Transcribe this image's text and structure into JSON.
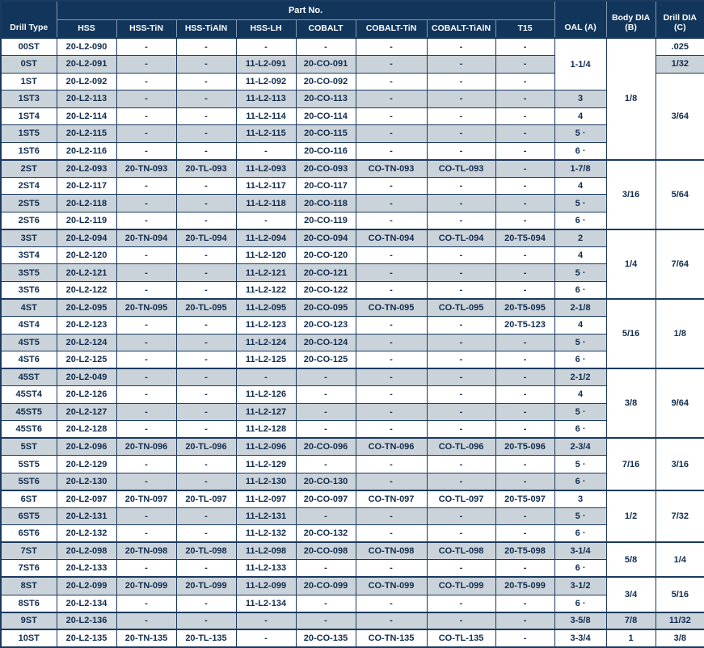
{
  "colors": {
    "header_bg": "#12365b",
    "header_text": "#ffffff",
    "header_sep": "#8296aa",
    "border": "#1b3a5f",
    "stripe": "#cbd3da",
    "text": "#112c4e"
  },
  "header": {
    "drill_type_label": "Drill Type",
    "part_no_label": "Part No.",
    "part_columns": [
      "HSS",
      "HSS-TiN",
      "HSS-TiAlN",
      "HSS-LH",
      "COBALT",
      "COBALT-TiN",
      "COBALT-TiAlN",
      "T15"
    ],
    "oal_label": "OAL (A)",
    "body_dia_label": "Body DIA\n(B)",
    "drill_dia_label": "Drill DIA\n(C)"
  },
  "rows": [
    {
      "type": "00ST",
      "parts": [
        "20-L2-090",
        "-",
        "-",
        "-",
        "-",
        "-",
        "-",
        "-"
      ],
      "oal": "1-1/4",
      "oal_span": 3,
      "body": "1/8",
      "body_span": 7,
      "drill": ".025",
      "drill_span": 1
    },
    {
      "type": "0ST",
      "parts": [
        "20-L2-091",
        "-",
        "-",
        "11-L2-091",
        "20-CO-091",
        "-",
        "-",
        "-"
      ],
      "drill": "1/32",
      "drill_span": 1
    },
    {
      "type": "1ST",
      "parts": [
        "20-L2-092",
        "-",
        "-",
        "11-L2-092",
        "20-CO-092",
        "-",
        "-",
        "-"
      ],
      "drill": "3/64",
      "drill_span": 5
    },
    {
      "type": "1ST3",
      "parts": [
        "20-L2-113",
        "-",
        "-",
        "11-L2-113",
        "20-CO-113",
        "-",
        "-",
        "-"
      ],
      "oal": "3",
      "oal_span": 1
    },
    {
      "type": "1ST4",
      "parts": [
        "20-L2-114",
        "-",
        "-",
        "11-L2-114",
        "20-CO-114",
        "-",
        "-",
        "-"
      ],
      "oal": "4",
      "oal_span": 1
    },
    {
      "type": "1ST5",
      "parts": [
        "20-L2-115",
        "-",
        "-",
        "11-L2-115",
        "20-CO-115",
        "-",
        "-",
        "-"
      ],
      "oal": "5 ·",
      "oal_span": 1
    },
    {
      "type": "1ST6",
      "parts": [
        "20-L2-116",
        "-",
        "-",
        "-",
        "20-CO-116",
        "-",
        "-",
        "-"
      ],
      "oal": "6 ·",
      "oal_span": 1
    },
    {
      "type": "2ST",
      "group": true,
      "parts": [
        "20-L2-093",
        "20-TN-093",
        "20-TL-093",
        "11-L2-093",
        "20-CO-093",
        "CO-TN-093",
        "CO-TL-093",
        "-"
      ],
      "oal": "1-7/8",
      "oal_span": 1,
      "body": "3/16",
      "body_span": 4,
      "drill": "5/64",
      "drill_span": 4
    },
    {
      "type": "2ST4",
      "parts": [
        "20-L2-117",
        "-",
        "-",
        "11-L2-117",
        "20-CO-117",
        "-",
        "-",
        "-"
      ],
      "oal": "4",
      "oal_span": 1
    },
    {
      "type": "2ST5",
      "parts": [
        "20-L2-118",
        "-",
        "-",
        "11-L2-118",
        "20-CO-118",
        "-",
        "-",
        "-"
      ],
      "oal": "5 ·",
      "oal_span": 1
    },
    {
      "type": "2ST6",
      "parts": [
        "20-L2-119",
        "-",
        "-",
        "-",
        "20-CO-119",
        "-",
        "-",
        "-"
      ],
      "oal": "6 ·",
      "oal_span": 1
    },
    {
      "type": "3ST",
      "group": true,
      "parts": [
        "20-L2-094",
        "20-TN-094",
        "20-TL-094",
        "11-L2-094",
        "20-CO-094",
        "CO-TN-094",
        "CO-TL-094",
        "20-T5-094"
      ],
      "oal": "2",
      "oal_span": 1,
      "body": "1/4",
      "body_span": 4,
      "drill": "7/64",
      "drill_span": 4
    },
    {
      "type": "3ST4",
      "parts": [
        "20-L2-120",
        "-",
        "-",
        "11-L2-120",
        "20-CO-120",
        "-",
        "-",
        "-"
      ],
      "oal": "4",
      "oal_span": 1
    },
    {
      "type": "3ST5",
      "parts": [
        "20-L2-121",
        "-",
        "-",
        "11-L2-121",
        "20-CO-121",
        "-",
        "-",
        "-"
      ],
      "oal": "5 ·",
      "oal_span": 1
    },
    {
      "type": "3ST6",
      "parts": [
        "20-L2-122",
        "-",
        "-",
        "11-L2-122",
        "20-CO-122",
        "-",
        "-",
        "-"
      ],
      "oal": "6 ·",
      "oal_span": 1
    },
    {
      "type": "4ST",
      "group": true,
      "parts": [
        "20-L2-095",
        "20-TN-095",
        "20-TL-095",
        "11-L2-095",
        "20-CO-095",
        "CO-TN-095",
        "CO-TL-095",
        "20-T5-095"
      ],
      "oal": "2-1/8",
      "oal_span": 1,
      "body": "5/16",
      "body_span": 4,
      "drill": "1/8",
      "drill_span": 4
    },
    {
      "type": "4ST4",
      "parts": [
        "20-L2-123",
        "-",
        "-",
        "11-L2-123",
        "20-CO-123",
        "-",
        "-",
        "20-T5-123"
      ],
      "oal": "4",
      "oal_span": 1
    },
    {
      "type": "4ST5",
      "parts": [
        "20-L2-124",
        "-",
        "-",
        "11-L2-124",
        "20-CO-124",
        "-",
        "-",
        "-"
      ],
      "oal": "5 ·",
      "oal_span": 1
    },
    {
      "type": "4ST6",
      "parts": [
        "20-L2-125",
        "-",
        "-",
        "11-L2-125",
        "20-CO-125",
        "-",
        "-",
        "-"
      ],
      "oal": "6 ·",
      "oal_span": 1
    },
    {
      "type": "45ST",
      "group": true,
      "parts": [
        "20-L2-049",
        "-",
        "-",
        "-",
        "-",
        "-",
        "-",
        "-"
      ],
      "oal": "2-1/2",
      "oal_span": 1,
      "body": "3/8",
      "body_span": 4,
      "drill": "9/64",
      "drill_span": 4
    },
    {
      "type": "45ST4",
      "parts": [
        "20-L2-126",
        "-",
        "-",
        "11-L2-126",
        "-",
        "-",
        "-",
        "-"
      ],
      "oal": "4",
      "oal_span": 1
    },
    {
      "type": "45ST5",
      "parts": [
        "20-L2-127",
        "-",
        "-",
        "11-L2-127",
        "-",
        "-",
        "-",
        "-"
      ],
      "oal": "5 ·",
      "oal_span": 1
    },
    {
      "type": "45ST6",
      "parts": [
        "20-L2-128",
        "-",
        "-",
        "11-L2-128",
        "-",
        "-",
        "-",
        "-"
      ],
      "oal": "6 ·",
      "oal_span": 1
    },
    {
      "type": "5ST",
      "group": true,
      "parts": [
        "20-L2-096",
        "20-TN-096",
        "20-TL-096",
        "11-L2-096",
        "20-CO-096",
        "CO-TN-096",
        "CO-TL-096",
        "20-T5-096"
      ],
      "oal": "2-3/4",
      "oal_span": 1,
      "body": "7/16",
      "body_span": 3,
      "drill": "3/16",
      "drill_span": 3
    },
    {
      "type": "5ST5",
      "parts": [
        "20-L2-129",
        "-",
        "-",
        "11-L2-129",
        "-",
        "-",
        "-",
        "-"
      ],
      "oal": "5 ·",
      "oal_span": 1
    },
    {
      "type": "5ST6",
      "parts": [
        "20-L2-130",
        "-",
        "-",
        "11-L2-130",
        "20-CO-130",
        "-",
        "-",
        "-"
      ],
      "oal": "6 ·",
      "oal_span": 1
    },
    {
      "type": "6ST",
      "group": true,
      "parts": [
        "20-L2-097",
        "20-TN-097",
        "20-TL-097",
        "11-L2-097",
        "20-CO-097",
        "CO-TN-097",
        "CO-TL-097",
        "20-T5-097"
      ],
      "oal": "3",
      "oal_span": 1,
      "body": "1/2",
      "body_span": 3,
      "drill": "7/32",
      "drill_span": 3
    },
    {
      "type": "6ST5",
      "parts": [
        "20-L2-131",
        "-",
        "-",
        "11-L2-131",
        "-",
        "-",
        "-",
        "-"
      ],
      "oal": "5 ·",
      "oal_span": 1
    },
    {
      "type": "6ST6",
      "parts": [
        "20-L2-132",
        "-",
        "-",
        "11-L2-132",
        "20-CO-132",
        "-",
        "-",
        "-"
      ],
      "oal": "6 ·",
      "oal_span": 1
    },
    {
      "type": "7ST",
      "group": true,
      "parts": [
        "20-L2-098",
        "20-TN-098",
        "20-TL-098",
        "11-L2-098",
        "20-CO-098",
        "CO-TN-098",
        "CO-TL-098",
        "20-T5-098"
      ],
      "oal": "3-1/4",
      "oal_span": 1,
      "body": "5/8",
      "body_span": 2,
      "drill": "1/4",
      "drill_span": 2
    },
    {
      "type": "7ST6",
      "parts": [
        "20-L2-133",
        "-",
        "-",
        "11-L2-133",
        "-",
        "-",
        "-",
        "-"
      ],
      "oal": "6 ·",
      "oal_span": 1
    },
    {
      "type": "8ST",
      "group": true,
      "parts": [
        "20-L2-099",
        "20-TN-099",
        "20-TL-099",
        "11-L2-099",
        "20-CO-099",
        "CO-TN-099",
        "CO-TL-099",
        "20-T5-099"
      ],
      "oal": "3-1/2",
      "oal_span": 1,
      "body": "3/4",
      "body_span": 2,
      "drill": "5/16",
      "drill_span": 2
    },
    {
      "type": "8ST6",
      "parts": [
        "20-L2-134",
        "-",
        "-",
        "11-L2-134",
        "-",
        "-",
        "-",
        "-"
      ],
      "oal": "6 ·",
      "oal_span": 1
    },
    {
      "type": "9ST",
      "group": true,
      "parts": [
        "20-L2-136",
        "-",
        "-",
        "-",
        "-",
        "-",
        "-",
        "-"
      ],
      "oal": "3-5/8",
      "oal_span": 1,
      "body": "7/8",
      "body_span": 1,
      "drill": "11/32",
      "drill_span": 1
    },
    {
      "type": "10ST",
      "group": true,
      "parts": [
        "20-L2-135",
        "20-TN-135",
        "20-TL-135",
        "-",
        "20-CO-135",
        "CO-TN-135",
        "CO-TL-135",
        "-"
      ],
      "oal": "3-3/4",
      "oal_span": 1,
      "body": "1",
      "body_span": 1,
      "drill": "3/8",
      "drill_span": 1
    }
  ]
}
